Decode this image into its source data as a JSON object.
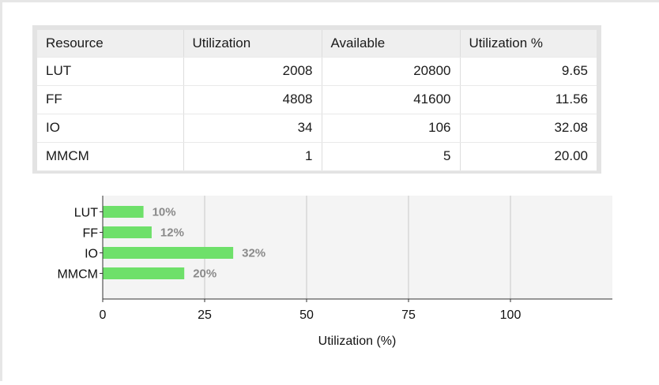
{
  "table": {
    "headers": [
      "Resource",
      "Utilization",
      "Available",
      "Utilization %"
    ],
    "rows": [
      [
        "LUT",
        "2008",
        "20800",
        "9.65"
      ],
      [
        "FF",
        "4808",
        "41600",
        "11.56"
      ],
      [
        "IO",
        "34",
        "106",
        "32.08"
      ],
      [
        "MMCM",
        "1",
        "5",
        "20.00"
      ]
    ]
  },
  "chart_data": {
    "type": "bar",
    "orientation": "horizontal",
    "categories": [
      "LUT",
      "FF",
      "IO",
      "MMCM"
    ],
    "values": [
      10,
      12,
      32,
      20
    ],
    "value_labels": [
      "10%",
      "12%",
      "32%",
      "20%"
    ],
    "xlabel": "Utilization (%)",
    "ylabel": "",
    "xlim": [
      0,
      125
    ],
    "xticks": [
      0,
      25,
      50,
      75,
      100
    ],
    "xtick_labels": [
      "0",
      "25",
      "50",
      "75",
      "100"
    ],
    "grid": "vertical",
    "bar_color": "#6ee06a",
    "plot_background": "#f4f4f4",
    "value_label_color": "#8a8a8a"
  }
}
